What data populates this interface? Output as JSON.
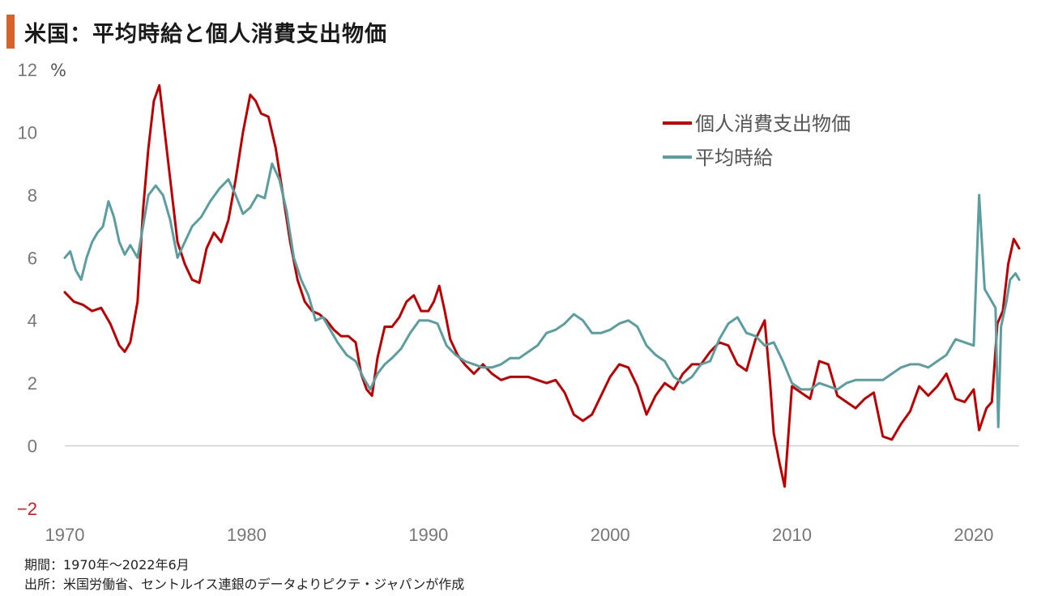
{
  "title": "米国：平均時給と個人消費支出物価",
  "notes": {
    "period": "期間：1970年～2022年6月",
    "source": "出所：米国労働省、セントルイス連銀のデータよりピクテ・ジャパンが作成"
  },
  "chart_data": {
    "type": "line",
    "unit": "%",
    "ylim": [
      -2,
      12
    ],
    "yticks": [
      -2,
      0,
      2,
      4,
      6,
      8,
      10,
      12
    ],
    "xlim": [
      1970,
      2022.5
    ],
    "xticks": [
      1970,
      1980,
      1990,
      2000,
      2010,
      2020
    ],
    "legend_position": "top-right",
    "series": [
      {
        "name": "個人消費支出物価",
        "color": "#c00000",
        "points": [
          [
            1970.0,
            4.9
          ],
          [
            1970.5,
            4.6
          ],
          [
            1971.0,
            4.5
          ],
          [
            1971.5,
            4.3
          ],
          [
            1972.0,
            4.4
          ],
          [
            1972.5,
            3.9
          ],
          [
            1973.0,
            3.2
          ],
          [
            1973.3,
            3.0
          ],
          [
            1973.6,
            3.3
          ],
          [
            1974.0,
            4.6
          ],
          [
            1974.3,
            7.5
          ],
          [
            1974.6,
            9.5
          ],
          [
            1974.9,
            11.0
          ],
          [
            1975.2,
            11.5
          ],
          [
            1975.5,
            10.0
          ],
          [
            1975.8,
            8.5
          ],
          [
            1976.2,
            6.5
          ],
          [
            1976.6,
            5.8
          ],
          [
            1977.0,
            5.3
          ],
          [
            1977.4,
            5.2
          ],
          [
            1977.8,
            6.3
          ],
          [
            1978.2,
            6.8
          ],
          [
            1978.6,
            6.5
          ],
          [
            1979.0,
            7.2
          ],
          [
            1979.4,
            8.5
          ],
          [
            1979.8,
            10.0
          ],
          [
            1980.2,
            11.2
          ],
          [
            1980.5,
            11.0
          ],
          [
            1980.8,
            10.6
          ],
          [
            1981.2,
            10.5
          ],
          [
            1981.6,
            9.5
          ],
          [
            1982.0,
            8.0
          ],
          [
            1982.4,
            6.5
          ],
          [
            1982.8,
            5.3
          ],
          [
            1983.2,
            4.6
          ],
          [
            1983.6,
            4.3
          ],
          [
            1984.0,
            4.2
          ],
          [
            1984.4,
            4.0
          ],
          [
            1984.8,
            3.7
          ],
          [
            1985.2,
            3.5
          ],
          [
            1985.6,
            3.5
          ],
          [
            1986.0,
            3.3
          ],
          [
            1986.3,
            2.3
          ],
          [
            1986.6,
            1.8
          ],
          [
            1986.9,
            1.6
          ],
          [
            1987.2,
            2.8
          ],
          [
            1987.6,
            3.8
          ],
          [
            1988.0,
            3.8
          ],
          [
            1988.4,
            4.1
          ],
          [
            1988.8,
            4.6
          ],
          [
            1989.2,
            4.8
          ],
          [
            1989.6,
            4.3
          ],
          [
            1990.0,
            4.3
          ],
          [
            1990.3,
            4.6
          ],
          [
            1990.6,
            5.1
          ],
          [
            1990.9,
            4.3
          ],
          [
            1991.2,
            3.4
          ],
          [
            1991.6,
            2.9
          ],
          [
            1992.0,
            2.6
          ],
          [
            1992.5,
            2.3
          ],
          [
            1993.0,
            2.6
          ],
          [
            1993.5,
            2.3
          ],
          [
            1994.0,
            2.1
          ],
          [
            1994.5,
            2.2
          ],
          [
            1995.0,
            2.2
          ],
          [
            1995.5,
            2.2
          ],
          [
            1996.0,
            2.1
          ],
          [
            1996.5,
            2.0
          ],
          [
            1997.0,
            2.1
          ],
          [
            1997.5,
            1.7
          ],
          [
            1998.0,
            1.0
          ],
          [
            1998.5,
            0.8
          ],
          [
            1999.0,
            1.0
          ],
          [
            1999.5,
            1.6
          ],
          [
            2000.0,
            2.2
          ],
          [
            2000.5,
            2.6
          ],
          [
            2001.0,
            2.5
          ],
          [
            2001.5,
            1.9
          ],
          [
            2002.0,
            1.0
          ],
          [
            2002.5,
            1.6
          ],
          [
            2003.0,
            2.0
          ],
          [
            2003.5,
            1.8
          ],
          [
            2004.0,
            2.3
          ],
          [
            2004.5,
            2.6
          ],
          [
            2005.0,
            2.6
          ],
          [
            2005.5,
            3.0
          ],
          [
            2006.0,
            3.3
          ],
          [
            2006.5,
            3.2
          ],
          [
            2007.0,
            2.6
          ],
          [
            2007.5,
            2.4
          ],
          [
            2008.0,
            3.4
          ],
          [
            2008.5,
            4.0
          ],
          [
            2008.8,
            2.0
          ],
          [
            2009.0,
            0.4
          ],
          [
            2009.3,
            -0.5
          ],
          [
            2009.6,
            -1.3
          ],
          [
            2010.0,
            1.9
          ],
          [
            2010.5,
            1.7
          ],
          [
            2011.0,
            1.5
          ],
          [
            2011.5,
            2.7
          ],
          [
            2012.0,
            2.6
          ],
          [
            2012.5,
            1.6
          ],
          [
            2013.0,
            1.4
          ],
          [
            2013.5,
            1.2
          ],
          [
            2014.0,
            1.5
          ],
          [
            2014.5,
            1.7
          ],
          [
            2015.0,
            0.3
          ],
          [
            2015.5,
            0.2
          ],
          [
            2016.0,
            0.7
          ],
          [
            2016.5,
            1.1
          ],
          [
            2017.0,
            1.9
          ],
          [
            2017.5,
            1.6
          ],
          [
            2018.0,
            1.9
          ],
          [
            2018.5,
            2.3
          ],
          [
            2019.0,
            1.5
          ],
          [
            2019.5,
            1.4
          ],
          [
            2020.0,
            1.8
          ],
          [
            2020.3,
            0.5
          ],
          [
            2020.7,
            1.2
          ],
          [
            2021.0,
            1.4
          ],
          [
            2021.3,
            3.9
          ],
          [
            2021.6,
            4.3
          ],
          [
            2021.9,
            5.8
          ],
          [
            2022.2,
            6.6
          ],
          [
            2022.5,
            6.3
          ]
        ]
      },
      {
        "name": "平均時給",
        "color": "#5b9ea0",
        "points": [
          [
            1970.0,
            6.0
          ],
          [
            1970.3,
            6.2
          ],
          [
            1970.6,
            5.6
          ],
          [
            1970.9,
            5.3
          ],
          [
            1971.2,
            6.0
          ],
          [
            1971.5,
            6.5
          ],
          [
            1971.8,
            6.8
          ],
          [
            1972.1,
            7.0
          ],
          [
            1972.4,
            7.8
          ],
          [
            1972.7,
            7.3
          ],
          [
            1973.0,
            6.5
          ],
          [
            1973.3,
            6.1
          ],
          [
            1973.6,
            6.4
          ],
          [
            1974.0,
            6.0
          ],
          [
            1974.3,
            7.0
          ],
          [
            1974.6,
            8.0
          ],
          [
            1975.0,
            8.3
          ],
          [
            1975.4,
            8.0
          ],
          [
            1975.8,
            7.2
          ],
          [
            1976.2,
            6.0
          ],
          [
            1976.6,
            6.5
          ],
          [
            1977.0,
            7.0
          ],
          [
            1977.5,
            7.3
          ],
          [
            1978.0,
            7.8
          ],
          [
            1978.5,
            8.2
          ],
          [
            1979.0,
            8.5
          ],
          [
            1979.4,
            8.0
          ],
          [
            1979.8,
            7.4
          ],
          [
            1980.2,
            7.6
          ],
          [
            1980.6,
            8.0
          ],
          [
            1981.0,
            7.9
          ],
          [
            1981.4,
            9.0
          ],
          [
            1981.8,
            8.5
          ],
          [
            1982.2,
            7.5
          ],
          [
            1982.6,
            6.0
          ],
          [
            1983.0,
            5.3
          ],
          [
            1983.4,
            4.8
          ],
          [
            1983.8,
            4.0
          ],
          [
            1984.2,
            4.1
          ],
          [
            1984.6,
            3.7
          ],
          [
            1985.0,
            3.3
          ],
          [
            1985.5,
            2.9
          ],
          [
            1986.0,
            2.7
          ],
          [
            1986.4,
            2.2
          ],
          [
            1986.8,
            1.8
          ],
          [
            1987.2,
            2.3
          ],
          [
            1987.6,
            2.6
          ],
          [
            1988.0,
            2.8
          ],
          [
            1988.5,
            3.1
          ],
          [
            1989.0,
            3.6
          ],
          [
            1989.5,
            4.0
          ],
          [
            1990.0,
            4.0
          ],
          [
            1990.5,
            3.9
          ],
          [
            1991.0,
            3.2
          ],
          [
            1991.5,
            2.9
          ],
          [
            1992.0,
            2.7
          ],
          [
            1992.5,
            2.6
          ],
          [
            1993.0,
            2.5
          ],
          [
            1993.5,
            2.5
          ],
          [
            1994.0,
            2.6
          ],
          [
            1994.5,
            2.8
          ],
          [
            1995.0,
            2.8
          ],
          [
            1995.5,
            3.0
          ],
          [
            1996.0,
            3.2
          ],
          [
            1996.5,
            3.6
          ],
          [
            1997.0,
            3.7
          ],
          [
            1997.5,
            3.9
          ],
          [
            1998.0,
            4.2
          ],
          [
            1998.5,
            4.0
          ],
          [
            1999.0,
            3.6
          ],
          [
            1999.5,
            3.6
          ],
          [
            2000.0,
            3.7
          ],
          [
            2000.5,
            3.9
          ],
          [
            2001.0,
            4.0
          ],
          [
            2001.5,
            3.8
          ],
          [
            2002.0,
            3.2
          ],
          [
            2002.5,
            2.9
          ],
          [
            2003.0,
            2.7
          ],
          [
            2003.5,
            2.2
          ],
          [
            2004.0,
            2.0
          ],
          [
            2004.5,
            2.2
          ],
          [
            2005.0,
            2.6
          ],
          [
            2005.5,
            2.7
          ],
          [
            2006.0,
            3.4
          ],
          [
            2006.5,
            3.9
          ],
          [
            2007.0,
            4.1
          ],
          [
            2007.5,
            3.6
          ],
          [
            2008.0,
            3.5
          ],
          [
            2008.5,
            3.2
          ],
          [
            2009.0,
            3.3
          ],
          [
            2009.5,
            2.7
          ],
          [
            2010.0,
            2.0
          ],
          [
            2010.5,
            1.8
          ],
          [
            2011.0,
            1.8
          ],
          [
            2011.5,
            2.0
          ],
          [
            2012.0,
            1.9
          ],
          [
            2012.5,
            1.8
          ],
          [
            2013.0,
            2.0
          ],
          [
            2013.5,
            2.1
          ],
          [
            2014.0,
            2.1
          ],
          [
            2014.5,
            2.1
          ],
          [
            2015.0,
            2.1
          ],
          [
            2015.5,
            2.3
          ],
          [
            2016.0,
            2.5
          ],
          [
            2016.5,
            2.6
          ],
          [
            2017.0,
            2.6
          ],
          [
            2017.5,
            2.5
          ],
          [
            2018.0,
            2.7
          ],
          [
            2018.5,
            2.9
          ],
          [
            2019.0,
            3.4
          ],
          [
            2019.5,
            3.3
          ],
          [
            2020.0,
            3.2
          ],
          [
            2020.3,
            8.0
          ],
          [
            2020.6,
            5.0
          ],
          [
            2020.9,
            4.7
          ],
          [
            2021.2,
            4.4
          ],
          [
            2021.35,
            0.6
          ],
          [
            2021.5,
            3.8
          ],
          [
            2021.8,
            4.6
          ],
          [
            2022.0,
            5.3
          ],
          [
            2022.3,
            5.5
          ],
          [
            2022.5,
            5.3
          ]
        ]
      }
    ]
  }
}
